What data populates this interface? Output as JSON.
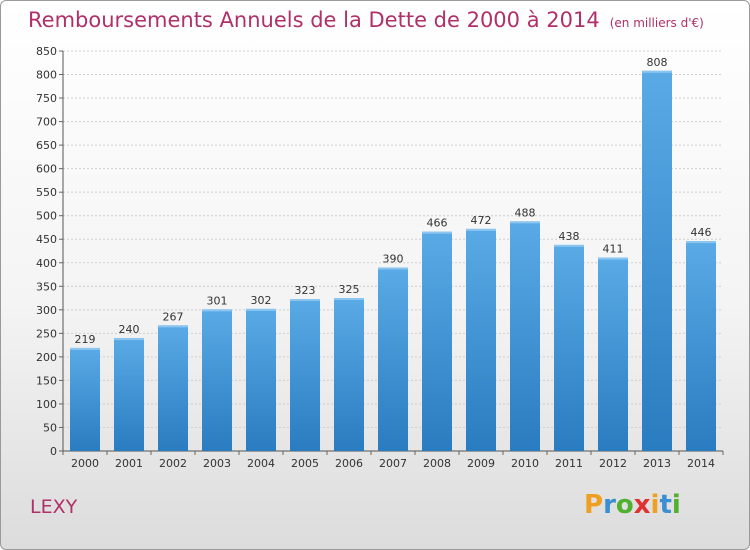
{
  "chart_data": {
    "type": "bar",
    "title": "Remboursements Annuels de la Dette de 2000 à 2014",
    "subtitle": "(en milliers d'€)",
    "categories": [
      "2000",
      "2001",
      "2002",
      "2003",
      "2004",
      "2005",
      "2006",
      "2007",
      "2008",
      "2009",
      "2010",
      "2011",
      "2012",
      "2013",
      "2014"
    ],
    "values": [
      219,
      240,
      267,
      301,
      302,
      323,
      325,
      390,
      466,
      472,
      488,
      438,
      411,
      808,
      446
    ],
    "ylim": [
      0,
      850
    ],
    "yticks": [
      0,
      50,
      100,
      150,
      200,
      250,
      300,
      350,
      400,
      450,
      500,
      550,
      600,
      650,
      700,
      750,
      800,
      850
    ],
    "grid": true,
    "legend": "none",
    "bar_color": "#4f9fdc"
  },
  "footer": {
    "commune": "LEXY",
    "logo_letters": [
      "P",
      "r",
      "o",
      "x",
      "i",
      "t",
      "i"
    ],
    "logo_colors": [
      "#f0a020",
      "#3a8fd0",
      "#50b030",
      "#e03030",
      "#f0a020",
      "#3a8fd0",
      "#50b030"
    ]
  },
  "colors": {
    "title": "#b0306a"
  }
}
